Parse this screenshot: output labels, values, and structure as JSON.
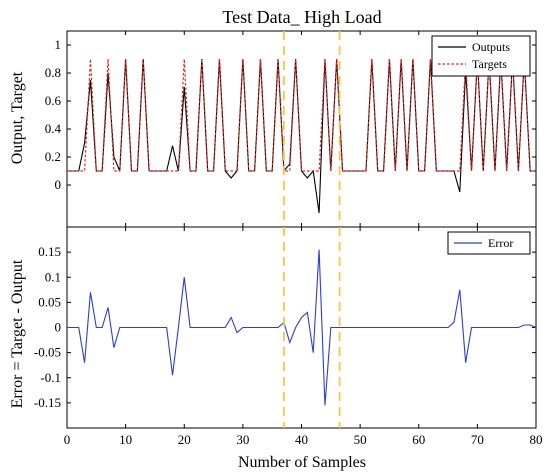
{
  "chart_data": [
    {
      "type": "line",
      "title": "Test Data_ High Load",
      "xlabel": "",
      "ylabel": "Output, Target",
      "xlim": [
        0,
        80
      ],
      "ylim": [
        -0.3,
        1.1
      ],
      "xticks": [
        0,
        10,
        20,
        30,
        40,
        50,
        60,
        70,
        80
      ],
      "yticks": [
        0,
        0.2,
        0.4,
        0.6,
        0.8,
        1
      ],
      "legend": "top-right",
      "grid": false,
      "x": [
        0,
        1,
        2,
        3,
        4,
        5,
        6,
        7,
        8,
        9,
        10,
        11,
        12,
        13,
        14,
        15,
        16,
        17,
        18,
        19,
        20,
        21,
        22,
        23,
        24,
        25,
        26,
        27,
        28,
        29,
        30,
        31,
        32,
        33,
        34,
        35,
        36,
        37,
        38,
        39,
        40,
        41,
        42,
        43,
        44,
        45,
        46,
        47,
        48,
        49,
        50,
        51,
        52,
        53,
        54,
        55,
        56,
        57,
        58,
        59,
        60,
        61,
        62,
        63,
        64,
        65,
        66,
        67,
        68,
        69,
        70,
        71,
        72,
        73,
        74,
        75,
        76,
        77,
        78,
        79,
        80
      ],
      "series": [
        {
          "name": "Outputs",
          "color": "#000000",
          "style": "solid",
          "values": [
            0.1,
            0.1,
            0.1,
            0.3,
            0.75,
            0.1,
            0.1,
            0.8,
            0.2,
            0.1,
            0.9,
            0.1,
            0.1,
            0.9,
            0.1,
            0.1,
            0.1,
            0.1,
            0.28,
            0.1,
            0.7,
            0.1,
            0.1,
            0.9,
            0.1,
            0.1,
            0.9,
            0.1,
            0.05,
            0.1,
            0.9,
            0.1,
            0.1,
            0.9,
            0.1,
            0.1,
            0.9,
            0.1,
            0.15,
            0.9,
            0.1,
            0.05,
            0.1,
            -0.2,
            0.9,
            0.1,
            0.9,
            0.1,
            0.1,
            0.1,
            0.1,
            0.1,
            0.9,
            0.1,
            0.1,
            0.9,
            0.1,
            0.9,
            0.1,
            0.9,
            0.1,
            0.1,
            0.9,
            0.1,
            0.1,
            0.1,
            0.1,
            -0.05,
            0.82,
            0.1,
            0.9,
            0.1,
            0.9,
            0.1,
            0.9,
            0.1,
            0.9,
            0.1,
            0.9,
            0.1,
            0.1
          ]
        },
        {
          "name": "Targets",
          "color": "#e8231f",
          "style": "dotted",
          "values": [
            0.1,
            0.1,
            0.1,
            0.1,
            0.9,
            0.1,
            0.1,
            0.9,
            0.1,
            0.1,
            0.9,
            0.1,
            0.1,
            0.9,
            0.1,
            0.1,
            0.1,
            0.1,
            0.1,
            0.1,
            0.9,
            0.1,
            0.1,
            0.9,
            0.1,
            0.1,
            0.9,
            0.1,
            0.1,
            0.1,
            0.9,
            0.1,
            0.1,
            0.9,
            0.1,
            0.1,
            0.9,
            0.1,
            0.1,
            0.9,
            0.1,
            0.1,
            0.1,
            0.1,
            0.9,
            0.1,
            0.9,
            0.1,
            0.1,
            0.1,
            0.1,
            0.1,
            0.9,
            0.1,
            0.1,
            0.9,
            0.1,
            0.9,
            0.1,
            0.9,
            0.1,
            0.1,
            0.9,
            0.1,
            0.1,
            0.1,
            0.1,
            0.1,
            0.9,
            0.1,
            0.9,
            0.1,
            0.9,
            0.1,
            0.9,
            0.1,
            0.9,
            0.1,
            0.9,
            0.1,
            0.1
          ]
        }
      ],
      "annotations": [
        {
          "type": "vline",
          "x": 37,
          "color": "#f5c842",
          "style": "dashed"
        },
        {
          "type": "vline",
          "x": 46.5,
          "color": "#f5c842",
          "style": "dashed"
        }
      ]
    },
    {
      "type": "line",
      "title": "",
      "xlabel": "Number of Samples",
      "ylabel": "Error = Target - Output",
      "xlim": [
        0,
        80
      ],
      "ylim": [
        -0.2,
        0.2
      ],
      "xticks": [
        0,
        10,
        20,
        30,
        40,
        50,
        60,
        70,
        80
      ],
      "yticks": [
        -0.15,
        -0.1,
        -0.05,
        0,
        0.05,
        0.1,
        0.15
      ],
      "legend": "top-right",
      "grid": false,
      "x": [
        0,
        1,
        2,
        3,
        4,
        5,
        6,
        7,
        8,
        9,
        10,
        11,
        12,
        13,
        14,
        15,
        16,
        17,
        18,
        19,
        20,
        21,
        22,
        23,
        24,
        25,
        26,
        27,
        28,
        29,
        30,
        31,
        32,
        33,
        34,
        35,
        36,
        37,
        38,
        39,
        40,
        41,
        42,
        43,
        44,
        45,
        46,
        47,
        48,
        49,
        50,
        51,
        52,
        53,
        54,
        55,
        56,
        57,
        58,
        59,
        60,
        61,
        62,
        63,
        64,
        65,
        66,
        67,
        68,
        69,
        70,
        71,
        72,
        73,
        74,
        75,
        76,
        77,
        78,
        79,
        80
      ],
      "series": [
        {
          "name": "Error",
          "color": "#2e3bd6",
          "style": "solid",
          "values": [
            0,
            0,
            0,
            -0.07,
            0.07,
            0,
            0,
            0.04,
            -0.04,
            0,
            0,
            0,
            0,
            0,
            0,
            0,
            0,
            0,
            -0.095,
            0,
            0.1,
            0,
            0,
            0,
            0,
            0,
            0,
            0,
            0.02,
            -0.01,
            0,
            0,
            0,
            0,
            0,
            0,
            0,
            0.01,
            -0.03,
            0,
            0.02,
            0.03,
            -0.05,
            0.155,
            -0.155,
            0,
            0,
            0,
            0,
            0,
            0,
            0,
            0,
            0,
            0,
            0,
            0,
            0,
            0,
            0,
            0,
            0,
            0,
            0,
            0,
            0,
            0.01,
            0.075,
            -0.07,
            0,
            0,
            0,
            0,
            0,
            0,
            0,
            0,
            0,
            0.005,
            0.005,
            0
          ]
        }
      ],
      "annotations": [
        {
          "type": "vline",
          "x": 37,
          "color": "#f5c842",
          "style": "dashed"
        },
        {
          "type": "vline",
          "x": 46.5,
          "color": "#f5c842",
          "style": "dashed"
        }
      ]
    }
  ]
}
